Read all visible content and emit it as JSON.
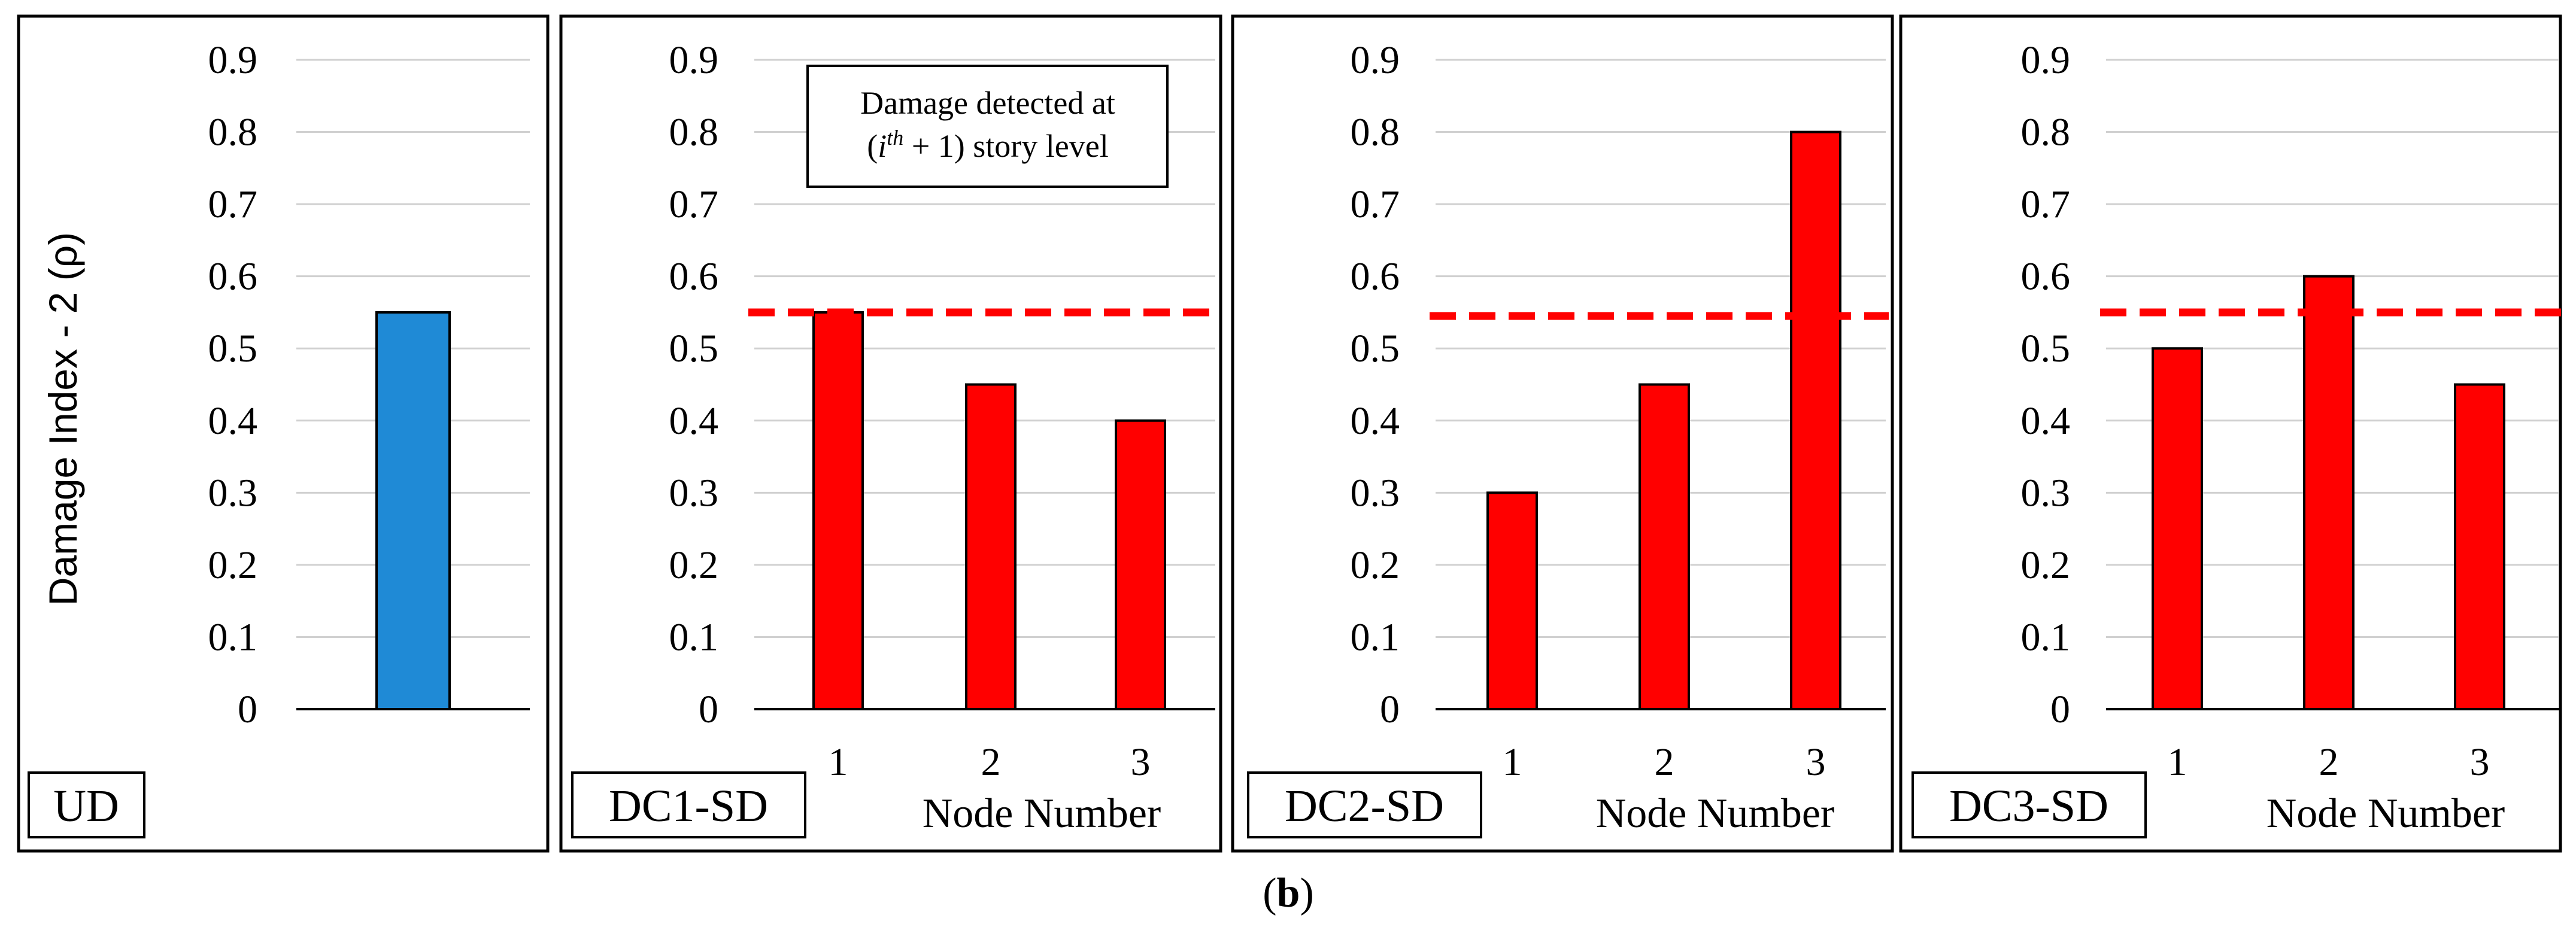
{
  "caption": {
    "open": "(",
    "letter": "b",
    "close": ")"
  },
  "y_axis": {
    "label": "Damage Index - 2 (ρ)",
    "ticks": [
      "0",
      "0.1",
      "0.2",
      "0.3",
      "0.4",
      "0.5",
      "0.6",
      "0.7",
      "0.8",
      "0.9"
    ]
  },
  "annotation": {
    "line1": "Damage detected at",
    "line2_pre": "(",
    "line2_i": "i",
    "line2_sup": "th",
    "line2_post": " + 1) story level"
  },
  "colors": {
    "undamaged": "#1f8ad6",
    "damaged": "#ff0000",
    "threshold": "#ff0000",
    "grid": "#d0d0d0",
    "axis": "#000000"
  },
  "chart_data": [
    {
      "type": "bar",
      "panel": "UD",
      "categories": [
        ""
      ],
      "values": [
        0.55
      ],
      "ylim": [
        0,
        0.9
      ],
      "xlabel": "",
      "ylabel": "Damage Index - 2 (ρ)",
      "threshold": null,
      "color": "#1f8ad6"
    },
    {
      "type": "bar",
      "panel": "DC1-SD",
      "categories": [
        "1",
        "2",
        "3"
      ],
      "values": [
        0.55,
        0.45,
        0.4
      ],
      "ylim": [
        0,
        0.9
      ],
      "xlabel": "Node Number",
      "threshold": 0.55,
      "color": "#ff0000"
    },
    {
      "type": "bar",
      "panel": "DC2-SD",
      "categories": [
        "1",
        "2",
        "3"
      ],
      "values": [
        0.3,
        0.45,
        0.8
      ],
      "ylim": [
        0,
        0.9
      ],
      "xlabel": "Node Number",
      "threshold": 0.545,
      "color": "#ff0000"
    },
    {
      "type": "bar",
      "panel": "DC3-SD",
      "categories": [
        "1",
        "2",
        "3"
      ],
      "values": [
        0.5,
        0.6,
        0.45
      ],
      "ylim": [
        0,
        0.9
      ],
      "xlabel": "Node Number",
      "threshold": 0.55,
      "color": "#ff0000"
    }
  ]
}
